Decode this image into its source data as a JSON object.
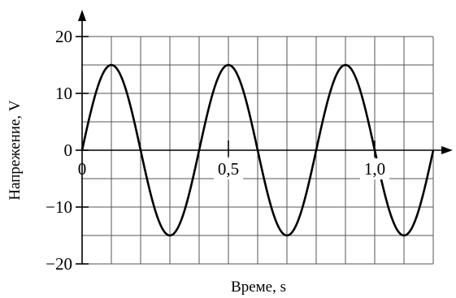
{
  "chart_data": {
    "type": "line",
    "xlabel": "Време, s",
    "ylabel": "Напрежение, V",
    "xlim": [
      0,
      1.2
    ],
    "ylim": [
      -20,
      20
    ],
    "grid": true,
    "x_grid_step": 0.1,
    "y_grid_step": 5,
    "x_ticks": [
      {
        "value": 0,
        "label": "0"
      },
      {
        "value": 0.5,
        "label": "0,5"
      },
      {
        "value": 1.0,
        "label": "1,0"
      }
    ],
    "y_ticks": [
      {
        "value": 20,
        "label": "20"
      },
      {
        "value": 10,
        "label": "10"
      },
      {
        "value": 0,
        "label": "0"
      },
      {
        "value": -10,
        "label": "−10"
      },
      {
        "value": -20,
        "label": "−20"
      }
    ],
    "series": [
      {
        "function": "sine",
        "amplitude": 15,
        "period": 0.4,
        "phase": 0,
        "x_range": [
          0,
          1.2
        ]
      }
    ]
  }
}
